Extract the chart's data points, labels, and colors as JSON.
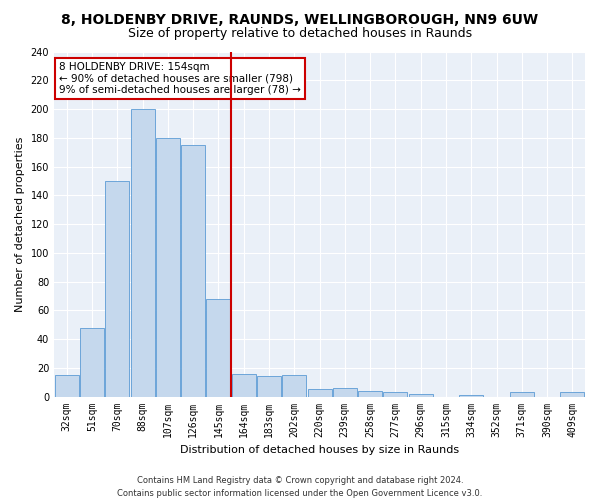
{
  "title": "8, HOLDENBY DRIVE, RAUNDS, WELLINGBOROUGH, NN9 6UW",
  "subtitle": "Size of property relative to detached houses in Raunds",
  "xlabel": "Distribution of detached houses by size in Raunds",
  "ylabel": "Number of detached properties",
  "bar_fill_color": "#c5d8ed",
  "bar_edge_color": "#5b9bd5",
  "categories": [
    "32sqm",
    "51sqm",
    "70sqm",
    "88sqm",
    "107sqm",
    "126sqm",
    "145sqm",
    "164sqm",
    "183sqm",
    "202sqm",
    "220sqm",
    "239sqm",
    "258sqm",
    "277sqm",
    "296sqm",
    "315sqm",
    "334sqm",
    "352sqm",
    "371sqm",
    "390sqm",
    "409sqm"
  ],
  "values": [
    15,
    48,
    150,
    200,
    180,
    175,
    68,
    16,
    14,
    15,
    5,
    6,
    4,
    3,
    2,
    0,
    1,
    0,
    3,
    0,
    3
  ],
  "ylim": [
    0,
    240
  ],
  "yticks": [
    0,
    20,
    40,
    60,
    80,
    100,
    120,
    140,
    160,
    180,
    200,
    220,
    240
  ],
  "vline_pos": 6.5,
  "vline_color": "#cc0000",
  "annotation_line1": "8 HOLDENBY DRIVE: 154sqm",
  "annotation_line2": "← 90% of detached houses are smaller (798)",
  "annotation_line3": "9% of semi-detached houses are larger (78) →",
  "annotation_box_facecolor": "#ffffff",
  "annotation_box_edgecolor": "#cc0000",
  "footer_line1": "Contains HM Land Registry data © Crown copyright and database right 2024.",
  "footer_line2": "Contains public sector information licensed under the Open Government Licence v3.0.",
  "bg_color": "#ffffff",
  "plot_bg_color": "#eaf0f8",
  "grid_color": "#ffffff",
  "title_fontsize": 10,
  "subtitle_fontsize": 9,
  "tick_fontsize": 7,
  "ylabel_fontsize": 8,
  "xlabel_fontsize": 8,
  "footer_fontsize": 6,
  "annot_fontsize": 7.5
}
